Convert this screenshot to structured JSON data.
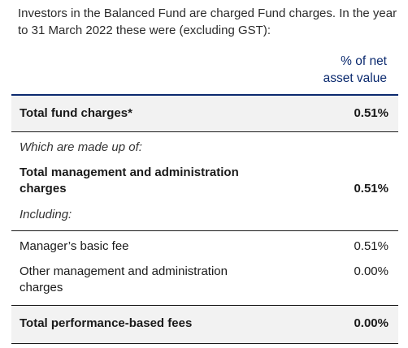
{
  "intro": "Investors in the Balanced Fund are charged Fund charges. In the year to 31 March 2022 these were (excluding GST):",
  "column_header": {
    "line1": "% of net",
    "line2": "asset value"
  },
  "rows": {
    "total_fund_charges": {
      "label": "Total fund charges*",
      "value": "0.51%"
    },
    "made_up_of": {
      "label": "Which are made up of:"
    },
    "total_mgmt_admin": {
      "label": "Total management and administration charges",
      "value": "0.51%"
    },
    "including": {
      "label": "Including:"
    },
    "managers_basic_fee": {
      "label": "Manager’s basic fee",
      "value": "0.51%"
    },
    "other_mgmt_admin": {
      "label": "Other management and administration charges",
      "value": "0.00%"
    },
    "total_performance_fees": {
      "label": "Total performance-based fees",
      "value": "0.00%"
    }
  },
  "colors": {
    "accent": "#0b2a6f",
    "band": "#f2f2f2"
  }
}
